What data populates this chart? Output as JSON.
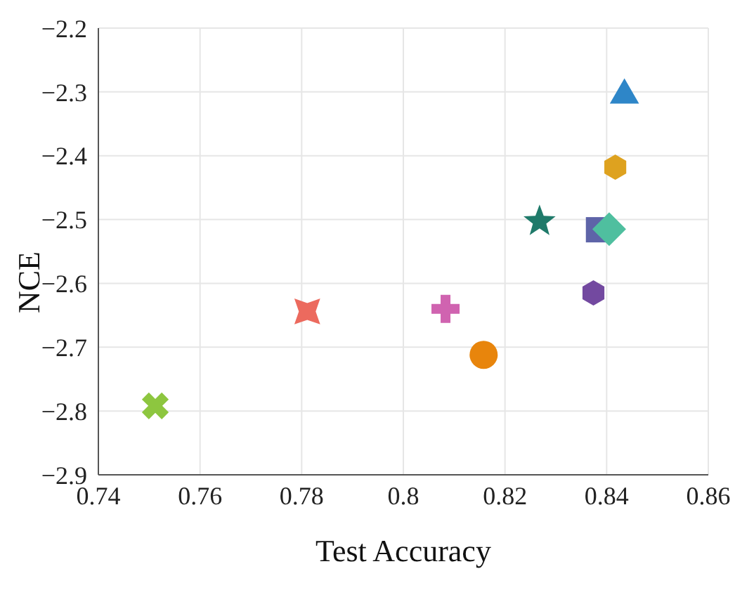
{
  "chart_data": {
    "type": "scatter",
    "xlabel": "Test Accuracy",
    "ylabel": "NCE",
    "xlim": [
      0.74,
      0.86
    ],
    "xticks": [
      0.74,
      0.76,
      0.78,
      0.8,
      0.82,
      0.84,
      0.86
    ],
    "ylim": [
      -2.9,
      -2.2
    ],
    "yticks": [
      {
        "value": -2.9,
        "label": "−2.9"
      },
      {
        "value": -2.8,
        "label": "−2.8"
      },
      {
        "value": -2.7,
        "label": "−2.7"
      },
      {
        "value": -2.6,
        "label": "−2.6"
      },
      {
        "value": -2.5,
        "label": "−2.5"
      },
      {
        "value": -2.4,
        "label": "−2.4"
      },
      {
        "value": -2.3,
        "label": "−2.3"
      },
      {
        "value": -2.2,
        "label": "−2.2"
      }
    ],
    "grid": true,
    "legend": false,
    "series": [
      {
        "color": "#2e86c8",
        "marker": "triangle",
        "x": [
          0.8435
        ],
        "values": [
          -2.305
        ]
      },
      {
        "color": "#dea21f",
        "x": [
          0.8417
        ],
        "values": [
          -2.418
        ]
      },
      {
        "color": "#1f7a6a",
        "marker": "star",
        "x": [
          0.8268
        ],
        "values": [
          -2.503
        ]
      },
      {
        "color": "#5e64a8",
        "marker": "square",
        "x": [
          0.8384
        ],
        "values": [
          -2.516
        ]
      },
      {
        "color": "#4fbf9f",
        "marker": "diamond",
        "x": [
          0.8405
        ],
        "values": [
          -2.515
        ]
      },
      {
        "color": "#7349a0",
        "x": [
          0.8374
        ],
        "values": [
          -2.615
        ]
      },
      {
        "color": "#d063b0",
        "marker": "plus",
        "x": [
          0.8083
        ],
        "values": [
          -2.64
        ]
      },
      {
        "color": "#e8850c",
        "marker": "circle",
        "x": [
          0.8158
        ],
        "values": [
          -2.712
        ]
      },
      {
        "color": "#ec6a5e",
        "marker": "star4",
        "x": [
          0.7811
        ],
        "values": [
          -2.644
        ]
      },
      {
        "color": "#8dc63f",
        "marker": "cross",
        "x": [
          0.7512
        ],
        "values": [
          -2.792
        ]
      }
    ]
  }
}
